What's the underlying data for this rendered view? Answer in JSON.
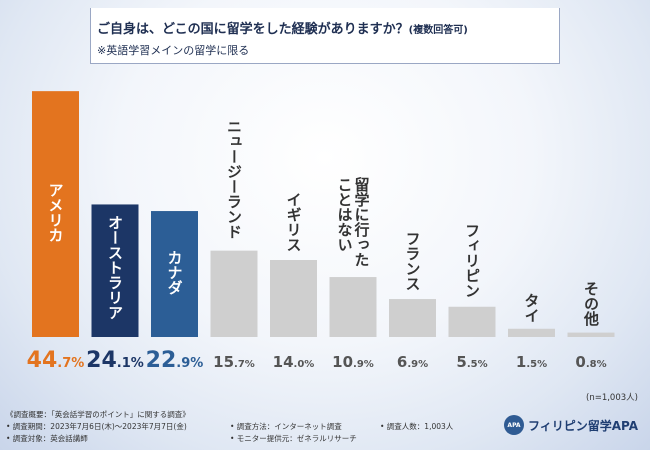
{
  "title": {
    "main": "ご自身は、どこの国に留学をした経験がありますか？",
    "suffix": "(複数回答可)",
    "sub": "※英語学習メインの留学に限る"
  },
  "chart_data": {
    "type": "bar",
    "title": "ご自身は、どこの国に留学をした経験がありますか？(複数回答可) ※英語学習メインの留学に限る",
    "categories": [
      "アメリカ",
      "オーストラリア",
      "カナダ",
      "ニュージーランド",
      "イギリス",
      "留学に行ったことはない",
      "フランス",
      "フィリピン",
      "タイ",
      "その他"
    ],
    "label_lines": [
      [
        "アメリカ"
      ],
      [
        "オーストラリア"
      ],
      [
        "カナダ"
      ],
      [
        "ニュージーランド"
      ],
      [
        "イギリス"
      ],
      [
        "留学に行った",
        "ことはない"
      ],
      [
        "フランス"
      ],
      [
        "フィリピン"
      ],
      [
        "タイ"
      ],
      [
        "その他"
      ]
    ],
    "values": [
      44.7,
      24.1,
      22.9,
      15.7,
      14.0,
      10.9,
      6.9,
      5.5,
      1.5,
      0.8
    ],
    "value_labels": [
      {
        "int": "44",
        "frac": ".7%"
      },
      {
        "int": "24",
        "frac": ".1%"
      },
      {
        "int": "22",
        "frac": ".9%"
      },
      {
        "int": "15",
        "frac": ".7%"
      },
      {
        "int": "14",
        "frac": ".0%"
      },
      {
        "int": "10",
        "frac": ".9%"
      },
      {
        "int": "6",
        "frac": ".9%"
      },
      {
        "int": "5",
        "frac": ".5%"
      },
      {
        "int": "1",
        "frac": ".5%"
      },
      {
        "int": "0",
        "frac": ".8%"
      }
    ],
    "unit": "%",
    "ylim": [
      0,
      45
    ],
    "colors": [
      "#e3741f",
      "#1c3666",
      "#2c5e96",
      "#cfcfcf",
      "#cfcfcf",
      "#cfcfcf",
      "#cfcfcf",
      "#cfcfcf",
      "#cfcfcf",
      "#cfcfcf"
    ],
    "value_colors": [
      "#e3741f",
      "#1c3666",
      "#2c5e96",
      "#555555",
      "#555555",
      "#555555",
      "#555555",
      "#555555",
      "#555555",
      "#555555"
    ],
    "label_colors": [
      "#ffffff",
      "#ffffff",
      "#ffffff",
      "#333333",
      "#333333",
      "#333333",
      "#333333",
      "#333333",
      "#333333",
      "#333333"
    ],
    "sample_size": "(n=1,003人)"
  },
  "footnotes": {
    "overview": "《調査概要：「英会話学習のポイント」に関する調査》",
    "period": "• 調査期間：2023年7月6日(木)〜2023年7月7日(金)",
    "target": "• 調査対象：英会話講師",
    "method": "• 調査方法：インターネット調査",
    "monitor": "• モニター提供元：ゼネラルリサーチ",
    "count": "• 調査人数：1,003人"
  },
  "logo": {
    "mark": "APA",
    "text": "フィリピン留学APA"
  }
}
